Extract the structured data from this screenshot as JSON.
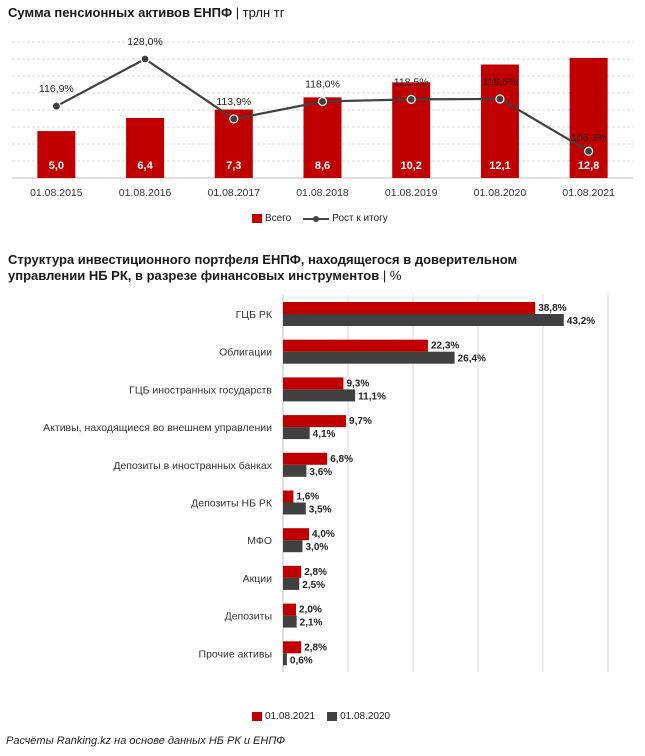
{
  "chart1_title": "Сумма пенсионных активов ЕНПФ",
  "chart1_unit": "| трлн тг",
  "chart2_title_line1": "Структура инвестиционного портфеля ЕНПФ, находящегося в доверительном",
  "chart2_title_line2": "управлении НБ РК, в разрезе финансовых инструментов",
  "chart2_unit": "| %",
  "footer": "Расчёты Ranking.kz на основе данных НБ РК и ЕНПФ",
  "colors": {
    "red": "#c00000",
    "dark": "#404040",
    "grid": "#d9d9d9"
  },
  "chart_data": [
    {
      "type": "bar",
      "title": "Сумма пенсионных активов ЕНПФ",
      "unit": "трлн тг",
      "categories": [
        "01.08.2015",
        "01.08.2016",
        "01.08.2017",
        "01.08.2018",
        "01.08.2019",
        "01.08.2020",
        "01.08.2021"
      ],
      "series": [
        {
          "name": "Всего",
          "type": "bar",
          "values": [
            5.0,
            6.4,
            7.3,
            8.6,
            10.2,
            12.1,
            12.8
          ],
          "labels": [
            "5,0",
            "6,4",
            "7,3",
            "8,6",
            "10,2",
            "12,1",
            "12,8"
          ]
        },
        {
          "name": "Рост к итогу",
          "type": "line",
          "values": [
            116.9,
            128.0,
            113.9,
            118.0,
            118.5,
            118.6,
            106.3
          ],
          "labels": [
            "116,9%",
            "128,0%",
            "113,9%",
            "118,0%",
            "118,5%",
            "118,6%",
            "106,3%"
          ]
        }
      ],
      "grid": true,
      "legend": "bottom"
    },
    {
      "type": "bar",
      "orientation": "horizontal",
      "title": "Структура инвестиционного портфеля ЕНПФ, находящегося в доверительном управлении НБ РК, в разрезе финансовых инструментов",
      "unit": "%",
      "categories": [
        "ГЦБ РК",
        "Облигации",
        "ГЦБ иностранных государств",
        "Активы, находящиеся во внешнем управлении",
        "Депозиты в иностранных банках",
        "Депозиты НБ РК",
        "МФО",
        "Акции",
        "Депозиты",
        "Прочие активы"
      ],
      "series": [
        {
          "name": "01.08.2021",
          "values": [
            38.8,
            22.3,
            9.3,
            9.7,
            6.8,
            1.6,
            4.0,
            2.8,
            2.0,
            2.8
          ],
          "labels": [
            "38,8%",
            "22,3%",
            "9,3%",
            "9,7%",
            "6,8%",
            "1,6%",
            "4,0%",
            "2,8%",
            "2,0%",
            "2,8%"
          ]
        },
        {
          "name": "01.08.2020",
          "values": [
            43.2,
            26.4,
            11.1,
            4.1,
            3.6,
            3.5,
            3.0,
            2.5,
            2.1,
            0.6
          ],
          "labels": [
            "43,2%",
            "26,4%",
            "11,1%",
            "4,1%",
            "3,6%",
            "3,5%",
            "3,0%",
            "2,5%",
            "2,1%",
            "0,6%"
          ]
        }
      ],
      "grid": true,
      "legend": "bottom"
    }
  ]
}
